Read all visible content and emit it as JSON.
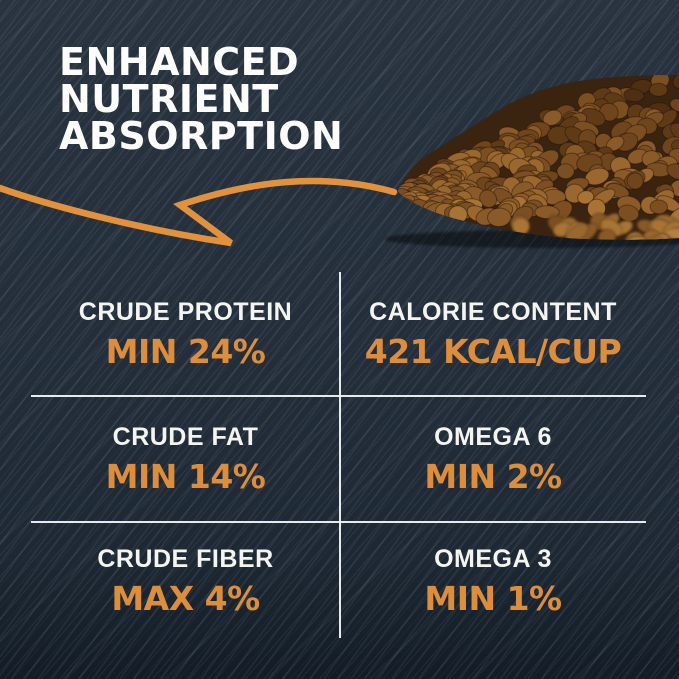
{
  "headline": {
    "lines": [
      "ENHANCED",
      "NUTRIENT",
      "ABSORPTION"
    ]
  },
  "nutrition_table": {
    "rows": [
      [
        {
          "label": "CRUDE PROTEIN",
          "value": "MIN 24%"
        },
        {
          "label": "CALORIE CONTENT",
          "value": "421 KCAL/CUP"
        }
      ],
      [
        {
          "label": "CRUDE FAT",
          "value": "MIN 14%"
        },
        {
          "label": "OMEGA 6",
          "value": "MIN 2%"
        }
      ],
      [
        {
          "label": "CRUDE FIBER",
          "value": "MAX 4%"
        },
        {
          "label": "OMEGA 3",
          "value": "MIN 1%"
        }
      ]
    ]
  },
  "colors": {
    "background": "#222d39",
    "accent_orange": "#dd8e3d",
    "arrow_orange": "#e2913c",
    "text_white": "#f4f4f0",
    "divider_white": "#f2f4f4",
    "kibble_palette": [
      "#4e2f12",
      "#5f3a17",
      "#6e451d",
      "#7c4f22",
      "#8a5a28",
      "#9a672f",
      "#a87436",
      "#b5813f"
    ]
  },
  "illustrations": {
    "kibble_pile": "pile of brown dry dog-food kibble in top-right corner",
    "arrow": "hand-drawn orange arrow sweeping from headline to kibble pile"
  }
}
